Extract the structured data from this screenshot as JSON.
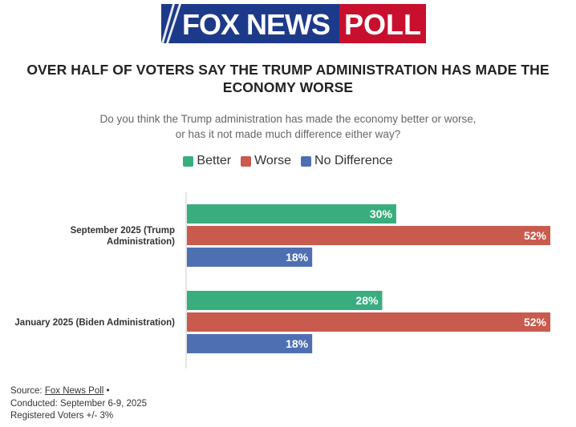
{
  "header": {
    "logo_text_left": "FOX NEWS",
    "logo_text_right": "POLL"
  },
  "chart_data": {
    "type": "bar",
    "orientation": "horizontal",
    "title": "OVER HALF OF VOTERS SAY THE TRUMP ADMINISTRATION HAS MADE THE ECONOMY WORSE",
    "subtitle_line1": "Do you think the Trump administration has made the economy better or worse,",
    "subtitle_line2": "or has it not made much difference either way?",
    "xlim": [
      0,
      52
    ],
    "categories": [
      {
        "label_lines": [
          "September 2025 (Trump",
          "Administration)"
        ]
      },
      {
        "label_lines": [
          "January 2025 (Biden Administration)"
        ]
      }
    ],
    "series": [
      {
        "name": "Better",
        "color": "#3aad7f",
        "values": [
          30,
          28
        ]
      },
      {
        "name": "Worse",
        "color": "#c95b4e",
        "values": [
          52,
          52
        ]
      },
      {
        "name": "No Difference",
        "color": "#4f6fb3",
        "values": [
          18,
          18
        ]
      }
    ],
    "value_suffix": "%",
    "legend_position": "top-center"
  },
  "footer": {
    "source_prefix": "Source: ",
    "source_link": "Fox News Poll",
    "source_suffix": " •",
    "conducted": "Conducted: September 6-9, 2025",
    "sample": "Registered Voters +/- 3%"
  }
}
